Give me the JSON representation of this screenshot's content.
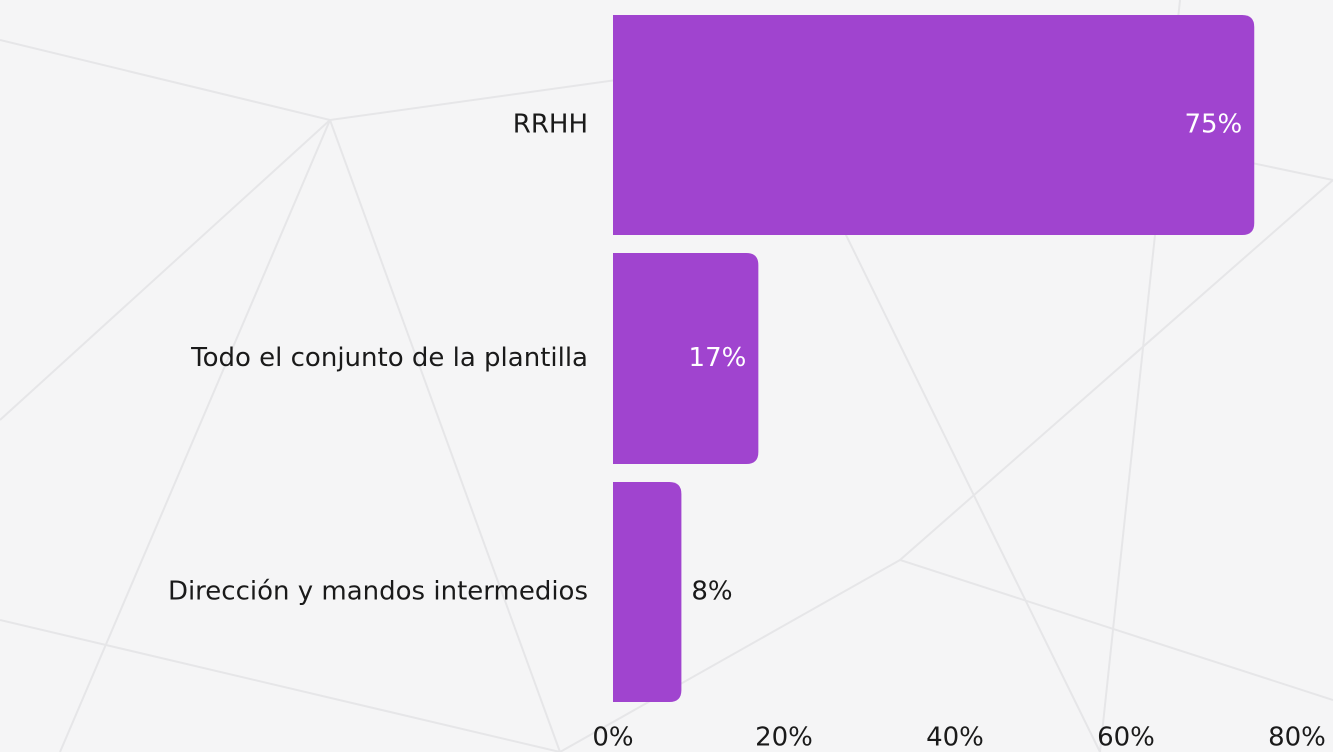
{
  "chart_data": {
    "type": "bar",
    "orientation": "horizontal",
    "categories": [
      "RRHH",
      "Todo el conjunto de la plantilla",
      "Dirección y mandos intermedios"
    ],
    "values": [
      75,
      17,
      8
    ],
    "value_labels": [
      "75%",
      "17%",
      "8%"
    ],
    "color": "#a044cf",
    "xlim": [
      0,
      80
    ],
    "xticks": [
      {
        "value": 0,
        "label": "0%"
      },
      {
        "value": 20,
        "label": "20%"
      },
      {
        "value": 40,
        "label": "40%"
      },
      {
        "value": 60,
        "label": "60%"
      },
      {
        "value": 80,
        "label": "80%"
      }
    ],
    "grid": false
  }
}
